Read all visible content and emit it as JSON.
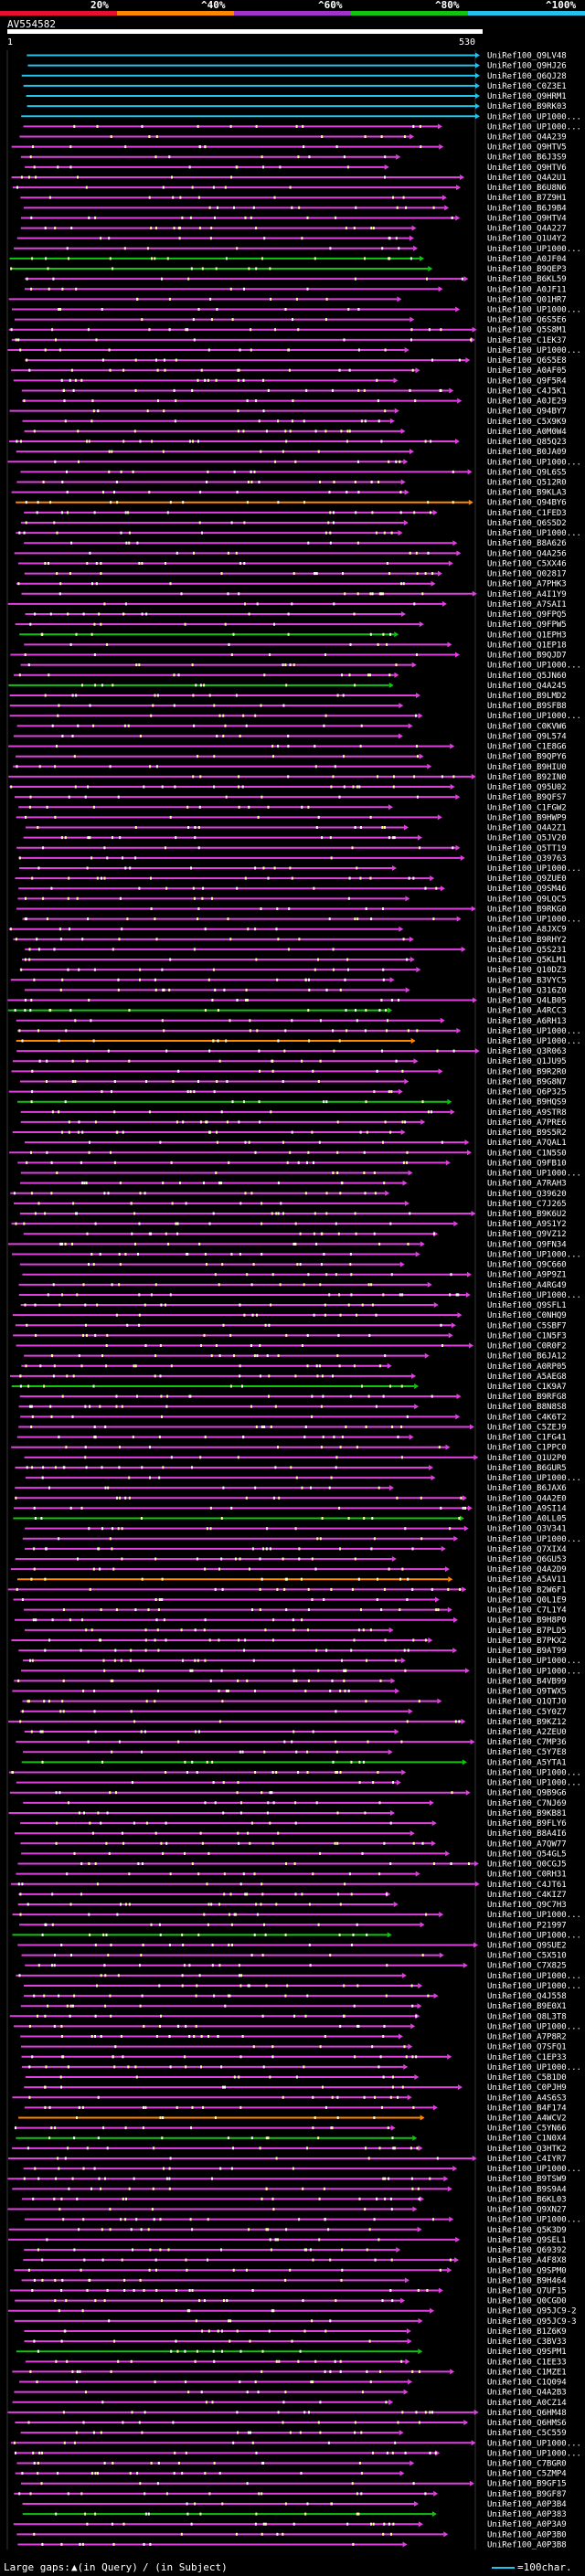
{
  "legend": {
    "labels": [
      "20%",
      "^40%",
      "^60%",
      "^80%",
      "^100%"
    ],
    "colors": [
      "#e8102e",
      "#ff8800",
      "#a033c8",
      "#10c410",
      "#23c2ec"
    ]
  },
  "query": {
    "name": "AV554582",
    "start": "1",
    "end": "530"
  },
  "hits": [
    "UniRef100_Q9LV48",
    "UniRef100_Q9HJ26",
    "UniRef100_Q6QJ28",
    "UniRef100_C0Z3E1",
    "UniRef100_Q9HRM1",
    "UniRef100_B9RK03",
    "UniRef100_UP1000...",
    "UniRef100_UP1000...",
    "UniRef100_Q4A239",
    "UniRef100_Q9HTV5",
    "UniRef100_B6J3S9",
    "UniRef100_Q9HTV6",
    "UniRef100_Q4A2U1",
    "UniRef100_B6U8N6",
    "UniRef100_B7Z9H1",
    "UniRef100_B6J9B4",
    "UniRef100_Q9HTV4",
    "UniRef100_Q4A227",
    "UniRef100_Q1U4Y2",
    "UniRef100_UP1000...",
    "UniRef100_A0JF04",
    "UniRef100_B9QEP3",
    "UniRef100_B6KL59",
    "UniRef100_A0JF11",
    "UniRef100_Q01HR7",
    "UniRef100_UP1000...",
    "UniRef100_Q6S5E6",
    "UniRef100_Q5S8M1",
    "UniRef100_C1EK37",
    "UniRef100_UP1000...",
    "UniRef100_Q6S5E8",
    "UniRef100_A0AF05",
    "UniRef100_Q9F5R4",
    "UniRef100_C4J5K1",
    "UniRef100_A0JE29",
    "UniRef100_Q94BY7",
    "UniRef100_C5X9K9",
    "UniRef100_A0M0W4",
    "UniRef100_Q85Q23",
    "UniRef100_B0JA09",
    "UniRef100_UP1000...",
    "UniRef100_Q9L6S5",
    "UniRef100_Q512R0",
    "UniRef100_B9KLA3",
    "UniRef100_Q94BY6",
    "UniRef100_C1FED3",
    "UniRef100_Q6S5D2",
    "UniRef100_UP1000...",
    "UniRef100_B8A626",
    "UniRef100_Q4A256",
    "UniRef100_C5XX46",
    "UniRef100_Q02817",
    "UniRef100_A7PHK3",
    "UniRef100_A4I1Y9",
    "UniRef100_A7SAI1",
    "UniRef100_Q9FPQ5",
    "UniRef100_Q9FPW5",
    "UniRef100_Q1EPH3",
    "UniRef100_Q1EP18",
    "UniRef100_B9QJD7",
    "UniRef100_UP1000...",
    "UniRef100_Q5JN60",
    "UniRef100_Q4A245",
    "UniRef100_B9LMD2",
    "UniRef100_B9SFB8",
    "UniRef100_UP1000...",
    "UniRef100_C0KVW6",
    "UniRef100_Q9L574",
    "UniRef100_C1E8G6",
    "UniRef100_B9QPY6",
    "UniRef100_B9HIU0",
    "UniRef100_B92IN0",
    "UniRef100_Q95U02",
    "UniRef100_B9QFS7",
    "UniRef100_C1FGW2",
    "UniRef100_B9HWP9",
    "UniRef100_Q4A2Z1",
    "UniRef100_Q5JV20",
    "UniRef100_Q5TT19",
    "UniRef100_Q39763",
    "UniRef100_UP1000...",
    "UniRef100_Q9ZUE0",
    "UniRef100_Q9SM46",
    "UniRef100_Q9LQC5",
    "UniRef100_B9RKG0",
    "UniRef100_UP1000...",
    "UniRef100_A8JXC9",
    "UniRef100_B9RHY2",
    "UniRef100_Q5S231",
    "UniRef100_Q5KLM1",
    "UniRef100_Q10DZ3",
    "UniRef100_B3VYC5",
    "UniRef100_Q316Z0",
    "UniRef100_Q4LB05",
    "UniRef100_A4RCC3",
    "UniRef100_A6RH13",
    "UniRef100_UP1000...",
    "UniRef100_UP1000...",
    "UniRef100_Q3R063",
    "UniRef100_Q1JU95",
    "UniRef100_B9R2R0",
    "UniRef100_B9G8N7",
    "UniRef100_Q6P325",
    "UniRef100_B9HQS9",
    "UniRef100_A9STR8",
    "UniRef100_A7PRE6",
    "UniRef100_B9S5R2",
    "UniRef100_A7QAL1",
    "UniRef100_C1N5S0",
    "UniRef100_Q9FB10",
    "UniRef100_UP1000...",
    "UniRef100_A7RAH3",
    "UniRef100_Q39620",
    "UniRef100_C7J265",
    "UniRef100_B9K6U2",
    "UniRef100_A9S1Y2",
    "UniRef100_Q9VZ12",
    "UniRef100_Q9FN34",
    "UniRef100_UP1000...",
    "UniRef100_Q9C660",
    "UniRef100_A9P9Z1",
    "UniRef100_A4RG49",
    "UniRef100_UP1000...",
    "UniRef100_Q9SFL1",
    "UniRef100_C0NHQ9",
    "UniRef100_C5SBF7",
    "UniRef100_C1N5F3",
    "UniRef100_C0R0F2",
    "UniRef100_B6JA12",
    "UniRef100_A0RP05",
    "UniRef100_A5AEG8",
    "UniRef100_C1K9A7",
    "UniRef100_B9RFG8",
    "UniRef100_B8N8S8",
    "UniRef100_C4K6T2",
    "UniRef100_C5ZEJ9",
    "UniRef100_C1FG41",
    "UniRef100_C1PPC0",
    "UniRef100_Q1U2P0",
    "UniRef100_B6GUR5",
    "UniRef100_UP1000...",
    "UniRef100_B6JAX6",
    "UniRef100_Q4A2E0",
    "UniRef100_A9SI14",
    "UniRef100_A0LL05",
    "UniRef100_Q3V341",
    "UniRef100_UP1000...",
    "UniRef100_Q7XIX4",
    "UniRef100_Q6GU53",
    "UniRef100_Q4A2D9",
    "UniRef100_A5AV11",
    "UniRef100_B2W6F1",
    "UniRef100_Q0L1E9",
    "UniRef100_C7L1Y4",
    "UniRef100_B9H8P0",
    "UniRef100_B7PLD5",
    "UniRef100_B7PKX2",
    "UniRef100_B9AT99",
    "UniRef100_UP1000...",
    "UniRef100_UP1000...",
    "UniRef100_B4VB99",
    "UniRef100_Q9TWX5",
    "UniRef100_Q1QTJ0",
    "UniRef100_C5Y0Z7",
    "UniRef100_B9KZ12",
    "UniRef100_A2ZEU0",
    "UniRef100_C7MP36",
    "UniRef100_C5Y7E8",
    "UniRef100_A5YTA1",
    "UniRef100_UP1000...",
    "UniRef100_UP1000...",
    "UniRef100_Q9B9G6",
    "UniRef100_C7NJ69",
    "UniRef100_B9KB81",
    "UniRef100_B9FLY6",
    "UniRef100_B8A4I6",
    "UniRef100_A7QW77",
    "UniRef100_Q54GL5",
    "UniRef100_Q0CGJ5",
    "UniRef100_C0RH31",
    "UniRef100_C4JT61",
    "UniRef100_C4KIZ7",
    "UniRef100_Q9C7H3",
    "UniRef100_UP1000...",
    "UniRef100_P21997",
    "UniRef100_UP1000...",
    "UniRef100_Q9SUE2",
    "UniRef100_C5X510",
    "UniRef100_C7X825",
    "UniRef100_UP1000...",
    "UniRef100_UP1000...",
    "UniRef100_Q4J558",
    "UniRef100_B9E0X1",
    "UniRef100_Q8L3T8",
    "UniRef100_UP1000...",
    "UniRef100_A7P8R2",
    "UniRef100_Q7SFQ1",
    "UniRef100_C1EP33",
    "UniRef100_UP1000...",
    "UniRef100_C5B1D0",
    "UniRef100_C0PJH9",
    "UniRef100_A4S6S3",
    "UniRef100_B4F174",
    "UniRef100_A4WCV2",
    "UniRef100_C5YN66",
    "UniRef100_C1N0X4",
    "UniRef100_Q3HTK2",
    "UniRef100_C4IYR7",
    "UniRef100_UP1000...",
    "UniRef100_B9TSW9",
    "UniRef100_B9S9A4",
    "UniRef100_B6KL03",
    "UniRef100_Q9XN27",
    "UniRef100_UP1000...",
    "UniRef100_Q5K3D9",
    "UniRef100_Q9SEL1",
    "UniRef100_Q69392",
    "UniRef100_A4F8X8",
    "UniRef100_Q9SPM0",
    "UniRef100_B9H464",
    "UniRef100_Q7UF15",
    "UniRef100_Q0CGD0",
    "UniRef100_Q95JC9-2",
    "UniRef100_Q95JC9-3",
    "UniRef100_B1Z6K9",
    "UniRef100_C3BV33",
    "UniRef100_Q9SPM1",
    "UniRef100_C1EE33",
    "UniRef100_C1MZE1",
    "UniRef100_C1Q094",
    "UniRef100_Q4A2B3",
    "UniRef100_A0CZ14",
    "UniRef100_Q6HM48",
    "UniRef100_Q6HMS6",
    "UniRef100_C5C559",
    "UniRef100_UP1000...",
    "UniRef100_UP1000...",
    "UniRef100_C7BGR0",
    "UniRef100_C5ZMP4",
    "UniRef100_B9GF15",
    "UniRef100_B9GF87",
    "UniRef100_A0P3B4",
    "UniRef100_A0P383",
    "UniRef100_A0P3A9",
    "UniRef100_A0P3B0",
    "UniRef100_A0P3B8"
  ],
  "footer": {
    "large_gaps": "Large gaps:",
    "in_query": "▲(in Query)",
    "in_subject": "/ (in Subject)",
    "scale": "=100char.",
    "scale_color": "#23c2ec"
  }
}
